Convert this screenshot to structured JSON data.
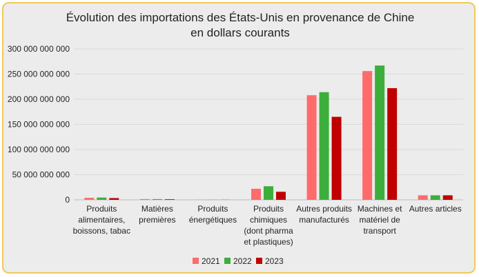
{
  "chart_data": {
    "type": "bar",
    "title": "Évolution des importations des États-Unis en provenance de Chine",
    "subtitle": "en dollars courants",
    "categories": [
      [
        "Produits",
        "alimentaires,",
        "boissons, tabac"
      ],
      [
        "Matières",
        "premières"
      ],
      [
        "Produits",
        "énergétiques"
      ],
      [
        "Produits",
        "chimiques",
        "(dont pharma",
        "et plastiques)"
      ],
      [
        "Autres produits",
        "manufacturés"
      ],
      [
        "Machines et",
        "matériel de",
        "transport"
      ],
      [
        "Autres articles"
      ]
    ],
    "series": [
      {
        "name": "2021",
        "color": "#ff6b6b",
        "values": [
          4000000000,
          1500000000,
          300000000,
          22000000000,
          208000000000,
          256000000000,
          9000000000
        ]
      },
      {
        "name": "2022",
        "color": "#3cae3c",
        "values": [
          4500000000,
          1500000000,
          300000000,
          27000000000,
          214000000000,
          267000000000,
          9000000000
        ]
      },
      {
        "name": "2023",
        "color": "#c00000",
        "values": [
          3500000000,
          1200000000,
          200000000,
          16000000000,
          165000000000,
          222000000000,
          9000000000
        ]
      }
    ],
    "ylim": [
      0,
      300000000000
    ],
    "yticks": [
      0,
      50000000000,
      100000000000,
      150000000000,
      200000000000,
      250000000000,
      300000000000
    ],
    "ytick_labels": [
      "0",
      "50 000 000 000",
      "100 000 000 000",
      "150 000 000 000",
      "200 000 000 000",
      "250 000 000 000",
      "300 000 000 000"
    ],
    "grid": true,
    "legend": "bottom"
  }
}
